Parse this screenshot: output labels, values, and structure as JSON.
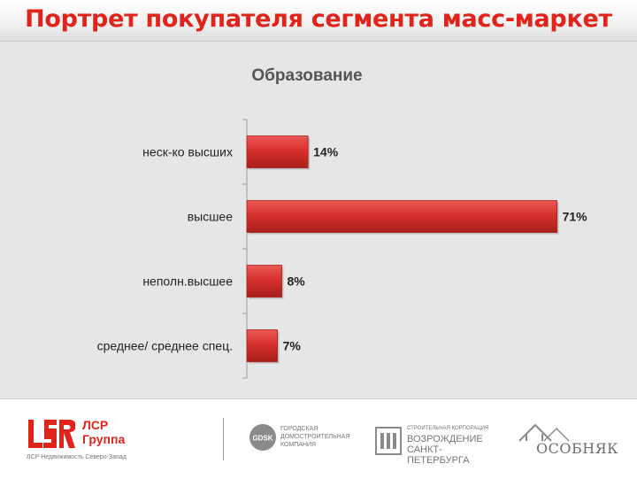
{
  "header": {
    "title": "Портрет покупателя сегмента масс-маркет"
  },
  "chart_data": {
    "type": "bar",
    "orientation": "horizontal",
    "title": "Образование",
    "categories": [
      "неск-ко высших",
      "высшее",
      "неполн.высшее",
      "среднее/ среднее спец."
    ],
    "values": [
      14,
      71,
      8,
      7
    ],
    "value_labels": [
      "14%",
      "71%",
      "8%",
      "7%"
    ],
    "unit": "%",
    "xlim": [
      0,
      80
    ],
    "grid": false,
    "legend": "none",
    "colors": {
      "bar": "#d9302c",
      "bar_dark": "#a81f1c",
      "axis": "#9a9a9a",
      "background": "#e6e6e6"
    }
  },
  "footer": {
    "lsr": {
      "name": "ЛСР Группа",
      "subtitle": "ЛСР Недвижимость Северо-Запад"
    },
    "gdsk": {
      "abbr": "GDSK",
      "text": "Городская домостроительная компания"
    },
    "vsp": {
      "top": "Строительная корпорация",
      "name": "Возрождение Санкт-Петербурга"
    },
    "osobnyak": {
      "name": "ОСОБНЯК"
    }
  },
  "colors": {
    "brand_red": "#e2231a"
  }
}
